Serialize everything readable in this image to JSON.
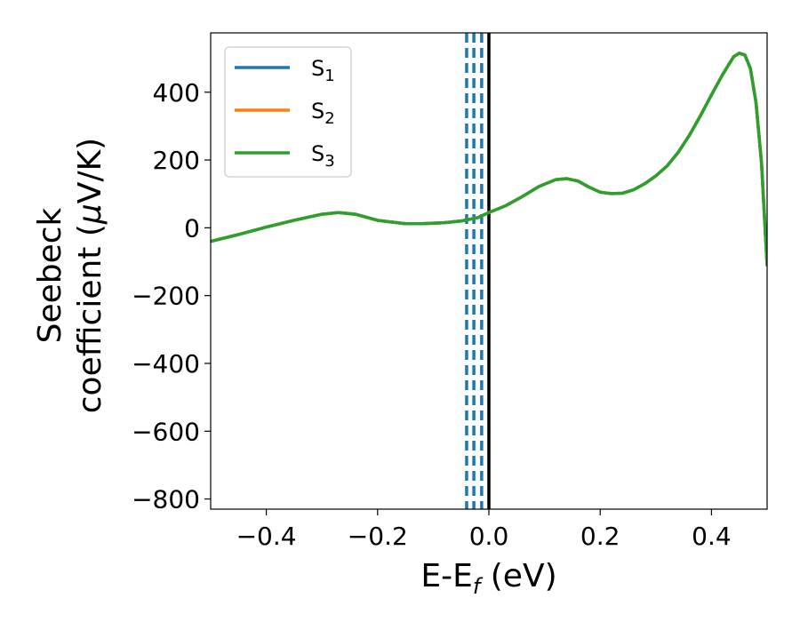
{
  "chart_data": {
    "type": "line",
    "xlabel_main": "E-E",
    "xlabel_sub": "f",
    "xlabel_unit": " (eV)",
    "ylabel_line1": "Seebeck",
    "ylabel_line2_text": "coefficient  (",
    "ylabel_line2_mu": "μ",
    "ylabel_line2_unit": "V/K)",
    "xlim": [
      -0.5,
      0.5
    ],
    "ylim": [
      -830,
      575
    ],
    "x_ticks": [
      -0.4,
      -0.2,
      0.0,
      0.2,
      0.4
    ],
    "x_tick_labels": [
      "−0.4",
      "−0.2",
      "0.0",
      "0.2",
      "0.4"
    ],
    "y_ticks": [
      400,
      200,
      0,
      -200,
      -400,
      -600,
      -800
    ],
    "y_tick_labels": [
      "400",
      "200",
      "0",
      "−200",
      "−400",
      "−600",
      "−800"
    ],
    "grid": false,
    "legend_position": "top-left",
    "series": [
      {
        "name": "S",
        "sub": "1",
        "color": "#1f77b4",
        "x": [
          -0.5,
          -0.45,
          -0.4,
          -0.35,
          -0.3,
          -0.27,
          -0.24,
          -0.2,
          -0.15,
          -0.12,
          -0.08,
          -0.05,
          -0.02,
          0.0,
          0.03,
          0.06,
          0.09,
          0.12,
          0.14,
          0.16,
          0.18,
          0.2,
          0.22,
          0.24,
          0.26,
          0.28,
          0.3,
          0.32,
          0.34,
          0.36,
          0.38,
          0.4,
          0.42,
          0.44,
          0.45,
          0.46,
          0.47,
          0.48,
          0.49,
          0.5
        ],
        "y": [
          -40,
          -20,
          2,
          22,
          40,
          45,
          40,
          22,
          12,
          12,
          15,
          20,
          30,
          45,
          65,
          92,
          122,
          142,
          145,
          138,
          120,
          105,
          101,
          102,
          112,
          130,
          153,
          182,
          222,
          272,
          330,
          392,
          452,
          505,
          515,
          510,
          470,
          370,
          190,
          -110
        ]
      },
      {
        "name": "S",
        "sub": "2",
        "color": "#ff7f0e",
        "x": [
          -0.5,
          -0.45,
          -0.4,
          -0.35,
          -0.3,
          -0.27,
          -0.24,
          -0.2,
          -0.15,
          -0.12,
          -0.08,
          -0.05,
          -0.02,
          0.0,
          0.03,
          0.06,
          0.09,
          0.12,
          0.14,
          0.16,
          0.18,
          0.2,
          0.22,
          0.24,
          0.26,
          0.28,
          0.3,
          0.32,
          0.34,
          0.36,
          0.38,
          0.4,
          0.42,
          0.44,
          0.45,
          0.46,
          0.47,
          0.48,
          0.49,
          0.5
        ],
        "y": [
          -40,
          -20,
          2,
          22,
          40,
          45,
          40,
          22,
          12,
          12,
          15,
          20,
          30,
          45,
          65,
          92,
          122,
          142,
          145,
          138,
          120,
          105,
          101,
          102,
          112,
          130,
          153,
          182,
          222,
          272,
          330,
          392,
          452,
          505,
          515,
          510,
          470,
          370,
          190,
          -110
        ]
      },
      {
        "name": "S",
        "sub": "3",
        "color": "#2ca02c",
        "x": [
          -0.5,
          -0.45,
          -0.4,
          -0.35,
          -0.3,
          -0.27,
          -0.24,
          -0.2,
          -0.15,
          -0.12,
          -0.08,
          -0.05,
          -0.02,
          0.0,
          0.03,
          0.06,
          0.09,
          0.12,
          0.14,
          0.16,
          0.18,
          0.2,
          0.22,
          0.24,
          0.26,
          0.28,
          0.3,
          0.32,
          0.34,
          0.36,
          0.38,
          0.4,
          0.42,
          0.44,
          0.45,
          0.46,
          0.47,
          0.48,
          0.49,
          0.5
        ],
        "y": [
          -40,
          -20,
          2,
          22,
          40,
          45,
          40,
          22,
          12,
          12,
          15,
          20,
          30,
          45,
          65,
          92,
          122,
          142,
          145,
          138,
          120,
          105,
          101,
          102,
          112,
          130,
          153,
          182,
          222,
          272,
          330,
          392,
          452,
          505,
          515,
          510,
          470,
          370,
          190,
          -110
        ]
      }
    ],
    "vertical_lines": [
      {
        "x": -0.04,
        "style": "dashed",
        "color": "#1f77b4"
      },
      {
        "x": -0.027,
        "style": "dashed",
        "color": "#1f77b4"
      },
      {
        "x": -0.013,
        "style": "dashed",
        "color": "#1f77b4"
      },
      {
        "x": 0.0,
        "style": "solid",
        "color": "#000000"
      }
    ]
  }
}
